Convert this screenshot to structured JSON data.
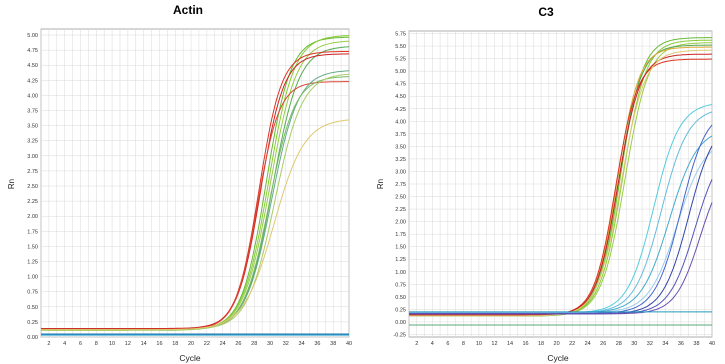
{
  "chart_data": [
    {
      "type": "line",
      "title": "Actin",
      "xlabel": "Cycle",
      "ylabel": "Rn",
      "xlim": [
        1,
        40
      ],
      "ylim": [
        0,
        5.1
      ],
      "grid": true,
      "x_ticks": [
        "2",
        "4",
        "6",
        "8",
        "10",
        "12",
        "14",
        "16",
        "18",
        "20",
        "22",
        "24",
        "26",
        "28",
        "30",
        "32",
        "34",
        "36",
        "38",
        "40"
      ],
      "y_ticks": [
        "0.00",
        "0.25",
        "0.50",
        "0.75",
        "1.00",
        "1.25",
        "1.50",
        "1.75",
        "2.00",
        "2.25",
        "2.50",
        "2.75",
        "3.00",
        "3.25",
        "3.50",
        "3.75",
        "4.00",
        "4.25",
        "4.50",
        "4.75",
        "5.00"
      ],
      "series": [
        {
          "color": "#66bb33",
          "base": 0.12,
          "plateau": 4.85,
          "ct": 29.5,
          "k": 0.65
        },
        {
          "color": "#88cc33",
          "base": 0.12,
          "plateau": 4.88,
          "ct": 29.8,
          "k": 0.62
        },
        {
          "color": "#99cc44",
          "base": 0.11,
          "plateau": 4.8,
          "ct": 30.0,
          "k": 0.6
        },
        {
          "color": "#55aa55",
          "base": 0.12,
          "plateau": 4.7,
          "ct": 30.3,
          "k": 0.6
        },
        {
          "color": "#dd3322",
          "base": 0.13,
          "plateau": 4.6,
          "ct": 28.6,
          "k": 0.7
        },
        {
          "color": "#cc2222",
          "base": 0.14,
          "plateau": 4.55,
          "ct": 28.8,
          "k": 0.68
        },
        {
          "color": "#dd4433",
          "base": 0.13,
          "plateau": 4.1,
          "ct": 28.4,
          "k": 0.72
        },
        {
          "color": "#66aa88",
          "base": 0.12,
          "plateau": 4.3,
          "ct": 30.2,
          "k": 0.6
        },
        {
          "color": "#77bb66",
          "base": 0.12,
          "plateau": 4.2,
          "ct": 29.9,
          "k": 0.62
        },
        {
          "color": "#aacc66",
          "base": 0.12,
          "plateau": 4.25,
          "ct": 30.6,
          "k": 0.58
        },
        {
          "color": "#e0c870",
          "base": 0.12,
          "plateau": 3.5,
          "ct": 30.5,
          "k": 0.52
        },
        {
          "color": "#55bbdd",
          "base": 0.03,
          "plateau": 0.0,
          "ct": 60,
          "k": 0.5
        },
        {
          "color": "#3399cc",
          "base": 0.04,
          "plateau": 0.0,
          "ct": 60,
          "k": 0.5
        },
        {
          "color": "#2277aa",
          "base": 0.05,
          "plateau": 0.0,
          "ct": 60,
          "k": 0.5
        }
      ]
    },
    {
      "type": "line",
      "title": "C3",
      "xlabel": "Cycle",
      "ylabel": "Rn",
      "xlim": [
        1,
        40
      ],
      "ylim": [
        -0.3,
        5.8
      ],
      "grid": true,
      "x_ticks": [
        "2",
        "4",
        "6",
        "8",
        "10",
        "12",
        "14",
        "16",
        "18",
        "20",
        "22",
        "24",
        "26",
        "28",
        "30",
        "32",
        "34",
        "36",
        "38",
        "40"
      ],
      "y_ticks": [
        "-0.25",
        "0.00",
        "0.25",
        "0.50",
        "0.75",
        "1.00",
        "1.25",
        "1.50",
        "1.75",
        "2.00",
        "2.25",
        "2.50",
        "2.75",
        "3.00",
        "3.25",
        "3.50",
        "3.75",
        "4.00",
        "4.25",
        "4.50",
        "4.75",
        "5.00",
        "5.25",
        "5.50",
        "5.75"
      ],
      "series": [
        {
          "color": "#66bb33",
          "base": 0.12,
          "plateau": 5.55,
          "ct": 28.2,
          "k": 0.7
        },
        {
          "color": "#88cc33",
          "base": 0.12,
          "plateau": 5.5,
          "ct": 28.5,
          "k": 0.68
        },
        {
          "color": "#99cc44",
          "base": 0.12,
          "plateau": 5.45,
          "ct": 28.8,
          "k": 0.66
        },
        {
          "color": "#55aa55",
          "base": 0.12,
          "plateau": 5.4,
          "ct": 28.0,
          "k": 0.7
        },
        {
          "color": "#ddaa33",
          "base": 0.13,
          "plateau": 5.35,
          "ct": 27.8,
          "k": 0.72
        },
        {
          "color": "#dd3322",
          "base": 0.14,
          "plateau": 5.1,
          "ct": 27.6,
          "k": 0.72
        },
        {
          "color": "#cc2222",
          "base": 0.14,
          "plateau": 5.2,
          "ct": 27.9,
          "k": 0.7
        },
        {
          "color": "#e0c870",
          "base": 0.12,
          "plateau": 5.3,
          "ct": 28.3,
          "k": 0.66
        },
        {
          "color": "#55ccdd",
          "base": 0.18,
          "plateau": 4.2,
          "ct": 32.5,
          "k": 0.6
        },
        {
          "color": "#66bbdd",
          "base": 0.18,
          "plateau": 4.1,
          "ct": 33.5,
          "k": 0.58
        },
        {
          "color": "#44aacc",
          "base": 0.18,
          "plateau": 3.7,
          "ct": 34.5,
          "k": 0.55
        },
        {
          "color": "#99ccee",
          "base": 0.18,
          "plateau": 3.5,
          "ct": 35.5,
          "k": 0.55
        },
        {
          "color": "#4466cc",
          "base": 0.17,
          "plateau": 4.1,
          "ct": 36.0,
          "k": 0.6
        },
        {
          "color": "#3344aa",
          "base": 0.16,
          "plateau": 3.9,
          "ct": 37.0,
          "k": 0.6
        },
        {
          "color": "#5555bb",
          "base": 0.16,
          "plateau": 3.4,
          "ct": 37.8,
          "k": 0.6
        },
        {
          "color": "#6a4fb0",
          "base": 0.16,
          "plateau": 3.1,
          "ct": 38.5,
          "k": 0.62
        },
        {
          "color": "#2299bb",
          "base": 0.2,
          "plateau": 0.0,
          "ct": 60,
          "k": 0.5
        },
        {
          "color": "#55aa77",
          "base": -0.06,
          "plateau": 0.0,
          "ct": 60,
          "k": 0.5
        }
      ]
    }
  ]
}
